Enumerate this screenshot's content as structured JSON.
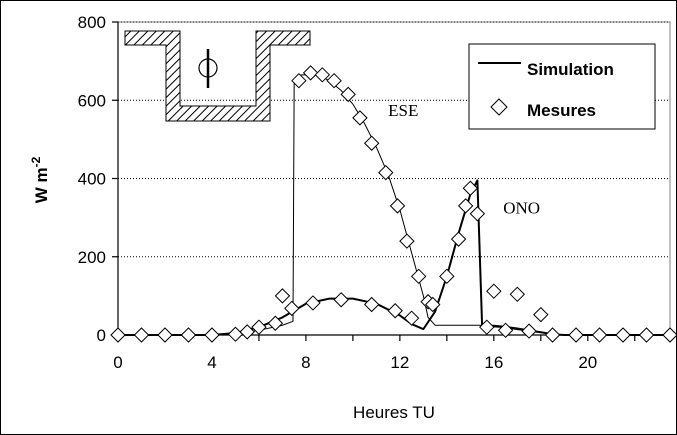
{
  "chart_data": {
    "type": "line",
    "xlabel": "Heures TU",
    "ylabel": "W m",
    "ylabel_exponent": "-2",
    "xlim": [
      0,
      23.5
    ],
    "ylim": [
      0,
      800
    ],
    "x_ticks": [
      0,
      4,
      8,
      12,
      16,
      20
    ],
    "y_ticks": [
      0,
      200,
      400,
      600,
      800
    ],
    "grid": "horizontal dotted",
    "legend": {
      "placement": "top-right",
      "entries": [
        {
          "label": "Simulation",
          "marker": "line"
        },
        {
          "label": "Mesures",
          "marker": "diamond"
        }
      ]
    },
    "annotations": [
      {
        "text": "ESE",
        "x": 11.5,
        "y": 560
      },
      {
        "text": "ONO",
        "x": 16.4,
        "y": 310
      }
    ],
    "series": [
      {
        "label_ref": "ESE",
        "kind": "Simulation",
        "x": [
          0,
          4,
          5,
          6,
          7,
          7.45,
          7.5,
          7.8,
          8.5,
          9.0,
          9.5,
          10.0,
          10.5,
          11.0,
          11.5,
          12.0,
          12.5,
          13.0,
          13.2,
          13.5,
          14,
          15,
          15.2,
          15.3,
          15.5,
          16.0,
          16.5,
          17,
          18,
          18.5,
          19,
          20,
          21,
          22,
          23.5
        ],
        "values": [
          0,
          0,
          3,
          12,
          25,
          35,
          650,
          665,
          665,
          650,
          625,
          590,
          540,
          480,
          410,
          320,
          210,
          100,
          45,
          25,
          25,
          25,
          25,
          25,
          25,
          25,
          22,
          18,
          8,
          2,
          0,
          0,
          0,
          0,
          0
        ]
      },
      {
        "label_ref": "ONO",
        "kind": "Simulation",
        "x": [
          0,
          4,
          5,
          6,
          7,
          8,
          9,
          10,
          11,
          12,
          12.5,
          13,
          13.5,
          14,
          14.5,
          15.0,
          15.3,
          15.5,
          16,
          16.5,
          17,
          18,
          18.5,
          19,
          20,
          21,
          22,
          23.5
        ],
        "values": [
          0,
          0,
          5,
          20,
          45,
          80,
          93,
          93,
          80,
          50,
          28,
          15,
          60,
          150,
          260,
          360,
          395,
          25,
          22,
          20,
          15,
          7,
          2,
          0,
          0,
          0,
          0,
          0
        ]
      },
      {
        "label_ref": "ESE",
        "kind": "Mesures",
        "x": [
          7.7,
          8.2,
          8.7,
          9.2,
          9.8,
          10.3,
          10.8,
          11.4,
          11.9,
          12.3,
          12.8,
          13.2
        ],
        "values": [
          650,
          670,
          665,
          650,
          615,
          555,
          490,
          415,
          330,
          240,
          150,
          85
        ]
      },
      {
        "label_ref": "ONO",
        "kind": "Mesures",
        "x": [
          0,
          1,
          2,
          3,
          4,
          5,
          5.5,
          6,
          6.7,
          7.0,
          7.4,
          8.3,
          9.5,
          10.8,
          11.8,
          12.5,
          13.4,
          14.0,
          14.5,
          14.8,
          15.0,
          15.3,
          15.7,
          16.0,
          16.5,
          17.0,
          17.5,
          18.0,
          18.5,
          19.5,
          20.5,
          21.5,
          22.5,
          23.5
        ],
        "values": [
          0,
          0,
          0,
          0,
          0,
          2,
          8,
          20,
          30,
          100,
          68,
          82,
          90,
          78,
          62,
          43,
          78,
          150,
          245,
          330,
          375,
          310,
          20,
          112,
          12,
          104,
          10,
          52,
          0,
          0,
          0,
          0,
          0,
          0
        ]
      }
    ]
  }
}
